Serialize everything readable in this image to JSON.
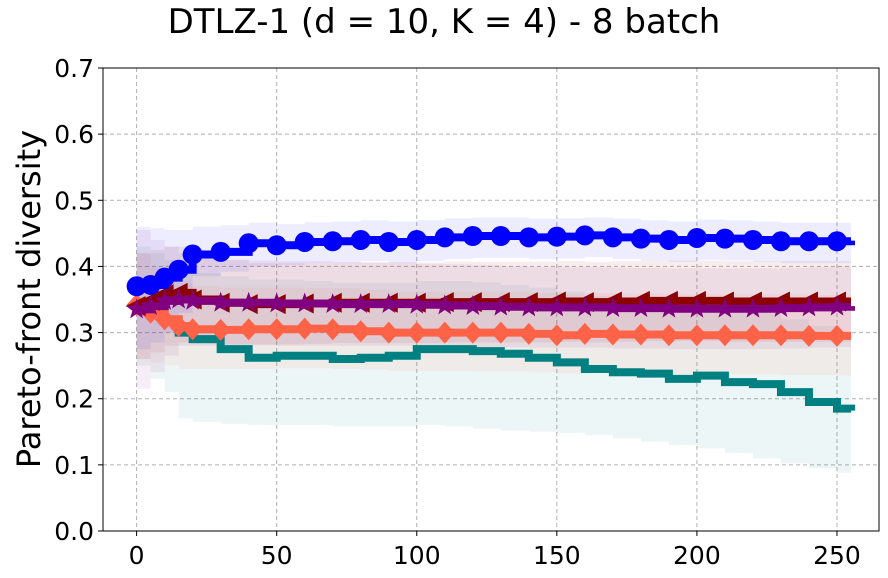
{
  "chart_data": {
    "type": "line",
    "title": "DTLZ-1 (d = 10, K = 4) - 8 batch",
    "xlabel": "",
    "ylabel": "Pareto-front diversity",
    "xlim": [
      -12,
      265
    ],
    "ylim": [
      0.0,
      0.7
    ],
    "xticks": [
      0,
      50,
      100,
      150,
      200,
      250
    ],
    "yticks": [
      0.0,
      0.1,
      0.2,
      0.3,
      0.4,
      0.5,
      0.6,
      0.7
    ],
    "ytick_labels": [
      "0.0",
      "0.1",
      "0.2",
      "0.3",
      "0.4",
      "0.5",
      "0.6",
      "0.7"
    ],
    "grid": true,
    "series": [
      {
        "name": "teal",
        "color": "#008080",
        "marker": "none",
        "x": [
          0,
          5,
          10,
          15,
          20,
          30,
          40,
          50,
          60,
          70,
          80,
          90,
          100,
          110,
          120,
          130,
          140,
          150,
          160,
          170,
          180,
          190,
          200,
          210,
          220,
          230,
          240,
          250,
          255
        ],
        "y": [
          0.34,
          0.33,
          0.32,
          0.3,
          0.29,
          0.275,
          0.262,
          0.265,
          0.265,
          0.26,
          0.262,
          0.265,
          0.275,
          0.275,
          0.272,
          0.268,
          0.262,
          0.255,
          0.245,
          0.24,
          0.238,
          0.23,
          0.235,
          0.225,
          0.222,
          0.21,
          0.195,
          0.185,
          0.182
        ],
        "lower": [
          0.25,
          0.23,
          0.21,
          0.17,
          0.165,
          0.162,
          0.16,
          0.16,
          0.16,
          0.158,
          0.158,
          0.158,
          0.16,
          0.158,
          0.155,
          0.152,
          0.15,
          0.148,
          0.145,
          0.14,
          0.135,
          0.13,
          0.125,
          0.118,
          0.11,
          0.102,
          0.095,
          0.088,
          0.085
        ],
        "upper": [
          0.43,
          0.42,
          0.41,
          0.4,
          0.39,
          0.385,
          0.38,
          0.38,
          0.378,
          0.375,
          0.375,
          0.375,
          0.378,
          0.378,
          0.376,
          0.372,
          0.368,
          0.362,
          0.355,
          0.35,
          0.345,
          0.34,
          0.34,
          0.335,
          0.33,
          0.32,
          0.31,
          0.3,
          0.295
        ]
      },
      {
        "name": "tomato",
        "color": "#ff6347",
        "marker": "diamond",
        "x": [
          0,
          5,
          10,
          15,
          20,
          30,
          40,
          50,
          60,
          70,
          80,
          90,
          100,
          110,
          120,
          130,
          140,
          150,
          160,
          170,
          180,
          190,
          200,
          210,
          220,
          230,
          240,
          250,
          255
        ],
        "y": [
          0.342,
          0.33,
          0.32,
          0.31,
          0.305,
          0.304,
          0.305,
          0.305,
          0.306,
          0.305,
          0.302,
          0.3,
          0.3,
          0.3,
          0.3,
          0.3,
          0.298,
          0.296,
          0.298,
          0.297,
          0.297,
          0.296,
          0.296,
          0.296,
          0.296,
          0.296,
          0.295,
          0.295,
          0.295
        ],
        "lower": [
          0.26,
          0.255,
          0.25,
          0.245,
          0.245,
          0.245,
          0.245,
          0.246,
          0.246,
          0.245,
          0.244,
          0.242,
          0.242,
          0.242,
          0.241,
          0.241,
          0.24,
          0.238,
          0.239,
          0.238,
          0.238,
          0.237,
          0.237,
          0.237,
          0.237,
          0.236,
          0.236,
          0.235,
          0.235
        ],
        "upper": [
          0.42,
          0.4,
          0.385,
          0.375,
          0.37,
          0.368,
          0.368,
          0.368,
          0.368,
          0.367,
          0.365,
          0.362,
          0.362,
          0.362,
          0.362,
          0.362,
          0.36,
          0.358,
          0.36,
          0.359,
          0.359,
          0.358,
          0.358,
          0.358,
          0.358,
          0.358,
          0.357,
          0.357,
          0.357
        ]
      },
      {
        "name": "dark red",
        "color": "#8b0000",
        "marker": "triangle-left",
        "x": [
          0,
          5,
          10,
          15,
          20,
          30,
          40,
          50,
          60,
          70,
          80,
          90,
          100,
          110,
          120,
          130,
          140,
          150,
          160,
          170,
          180,
          190,
          200,
          210,
          220,
          230,
          240,
          250,
          255
        ],
        "y": [
          0.34,
          0.348,
          0.358,
          0.36,
          0.35,
          0.345,
          0.343,
          0.343,
          0.344,
          0.345,
          0.345,
          0.345,
          0.345,
          0.346,
          0.346,
          0.346,
          0.346,
          0.347,
          0.346,
          0.347,
          0.348,
          0.348,
          0.348,
          0.347,
          0.347,
          0.347,
          0.347,
          0.347,
          0.347
        ],
        "lower": [
          0.26,
          0.27,
          0.28,
          0.285,
          0.283,
          0.282,
          0.282,
          0.282,
          0.283,
          0.284,
          0.284,
          0.284,
          0.284,
          0.285,
          0.285,
          0.285,
          0.285,
          0.286,
          0.285,
          0.286,
          0.287,
          0.287,
          0.287,
          0.286,
          0.286,
          0.286,
          0.286,
          0.286,
          0.286
        ],
        "upper": [
          0.42,
          0.425,
          0.43,
          0.43,
          0.42,
          0.41,
          0.405,
          0.405,
          0.405,
          0.406,
          0.406,
          0.406,
          0.406,
          0.407,
          0.407,
          0.407,
          0.407,
          0.408,
          0.407,
          0.408,
          0.409,
          0.409,
          0.409,
          0.408,
          0.408,
          0.408,
          0.408,
          0.408,
          0.408
        ]
      },
      {
        "name": "purple",
        "color": "#800080",
        "marker": "star",
        "x": [
          0,
          5,
          10,
          15,
          20,
          30,
          40,
          50,
          60,
          70,
          80,
          90,
          100,
          110,
          120,
          130,
          140,
          150,
          160,
          170,
          180,
          190,
          200,
          210,
          220,
          230,
          240,
          250,
          255
        ],
        "y": [
          0.335,
          0.34,
          0.348,
          0.35,
          0.348,
          0.345,
          0.345,
          0.344,
          0.344,
          0.343,
          0.343,
          0.343,
          0.342,
          0.341,
          0.34,
          0.339,
          0.338,
          0.338,
          0.338,
          0.337,
          0.337,
          0.336,
          0.336,
          0.336,
          0.336,
          0.337,
          0.338,
          0.339,
          0.34
        ],
        "lower": [
          0.215,
          0.24,
          0.265,
          0.28,
          0.28,
          0.28,
          0.281,
          0.28,
          0.28,
          0.28,
          0.28,
          0.28,
          0.28,
          0.279,
          0.278,
          0.278,
          0.277,
          0.277,
          0.277,
          0.276,
          0.276,
          0.275,
          0.275,
          0.275,
          0.275,
          0.276,
          0.277,
          0.278,
          0.279
        ],
        "upper": [
          0.455,
          0.44,
          0.43,
          0.42,
          0.415,
          0.41,
          0.409,
          0.408,
          0.408,
          0.406,
          0.406,
          0.406,
          0.404,
          0.403,
          0.402,
          0.4,
          0.399,
          0.399,
          0.399,
          0.398,
          0.398,
          0.397,
          0.397,
          0.397,
          0.397,
          0.398,
          0.399,
          0.4,
          0.401
        ]
      },
      {
        "name": "blue",
        "color": "#0000ff",
        "marker": "circle",
        "x": [
          0,
          5,
          10,
          15,
          20,
          30,
          40,
          50,
          60,
          70,
          80,
          90,
          100,
          110,
          120,
          130,
          140,
          150,
          160,
          170,
          180,
          190,
          200,
          210,
          220,
          230,
          240,
          250,
          255
        ],
        "y": [
          0.37,
          0.372,
          0.383,
          0.395,
          0.418,
          0.422,
          0.435,
          0.432,
          0.437,
          0.438,
          0.44,
          0.437,
          0.44,
          0.444,
          0.446,
          0.446,
          0.444,
          0.445,
          0.447,
          0.444,
          0.442,
          0.44,
          0.443,
          0.442,
          0.44,
          0.438,
          0.438,
          0.438,
          0.439
        ],
        "lower": [
          0.275,
          0.285,
          0.3,
          0.33,
          0.385,
          0.392,
          0.4,
          0.402,
          0.405,
          0.405,
          0.408,
          0.405,
          0.408,
          0.411,
          0.413,
          0.413,
          0.411,
          0.412,
          0.414,
          0.411,
          0.409,
          0.407,
          0.41,
          0.409,
          0.407,
          0.405,
          0.405,
          0.405,
          0.406
        ],
        "upper": [
          0.46,
          0.458,
          0.455,
          0.455,
          0.46,
          0.462,
          0.466,
          0.464,
          0.467,
          0.468,
          0.47,
          0.468,
          0.47,
          0.473,
          0.474,
          0.474,
          0.472,
          0.473,
          0.474,
          0.472,
          0.47,
          0.468,
          0.471,
          0.47,
          0.468,
          0.466,
          0.466,
          0.466,
          0.467
        ]
      }
    ]
  }
}
